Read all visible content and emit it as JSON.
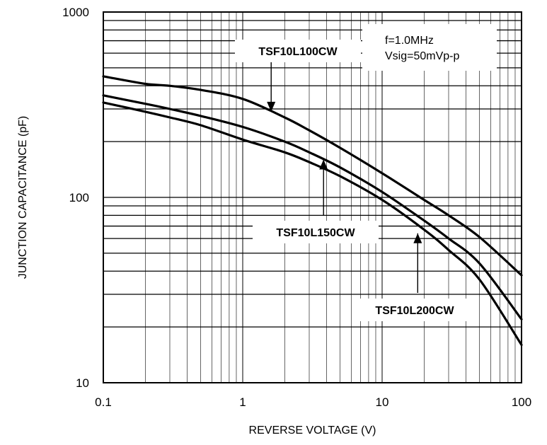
{
  "chart_data": {
    "type": "line",
    "xscale": "log",
    "yscale": "log",
    "xlim": [
      0.1,
      100
    ],
    "ylim": [
      10,
      1000
    ],
    "xlabel": "REVERSE VOLTAGE (V)",
    "ylabel": "JUNCTION CAPACITANCE (pF)",
    "x_ticks": [
      "0.1",
      "1",
      "10",
      "100"
    ],
    "y_ticks": [
      "10",
      "100",
      "1000"
    ],
    "grid": true,
    "conditions": [
      "f=1.0MHz",
      "Vsig=50mVp-p"
    ],
    "series": [
      {
        "name": "TSF10L100CW",
        "x": [
          0.1,
          0.2,
          0.3,
          0.5,
          1,
          2,
          3,
          5,
          10,
          20,
          30,
          50,
          100
        ],
        "y": [
          450,
          410,
          400,
          380,
          340,
          270,
          230,
          185,
          135,
          97,
          80,
          61,
          38
        ]
      },
      {
        "name": "TSF10L150CW",
        "x": [
          0.1,
          0.2,
          0.3,
          0.5,
          1,
          2,
          3,
          5,
          10,
          20,
          30,
          50,
          100
        ],
        "y": [
          355,
          320,
          300,
          275,
          240,
          200,
          175,
          145,
          107,
          75,
          60,
          44,
          22
        ]
      },
      {
        "name": "TSF10L200CW",
        "x": [
          0.1,
          0.2,
          0.3,
          0.5,
          1,
          2,
          3,
          5,
          10,
          20,
          30,
          50,
          100
        ],
        "y": [
          325,
          290,
          270,
          245,
          205,
          175,
          155,
          130,
          97,
          67,
          52,
          36,
          16
        ]
      }
    ],
    "annotations": [
      {
        "series": "TSF10L100CW",
        "arrow_x": 1.6,
        "arrow_y": 290,
        "arrow_direction": "down"
      },
      {
        "series": "TSF10L150CW",
        "arrow_x": 3.8,
        "arrow_y": 160,
        "arrow_direction": "up"
      },
      {
        "series": "TSF10L200CW",
        "arrow_x": 18,
        "arrow_y": 64,
        "arrow_direction": "up"
      }
    ]
  }
}
